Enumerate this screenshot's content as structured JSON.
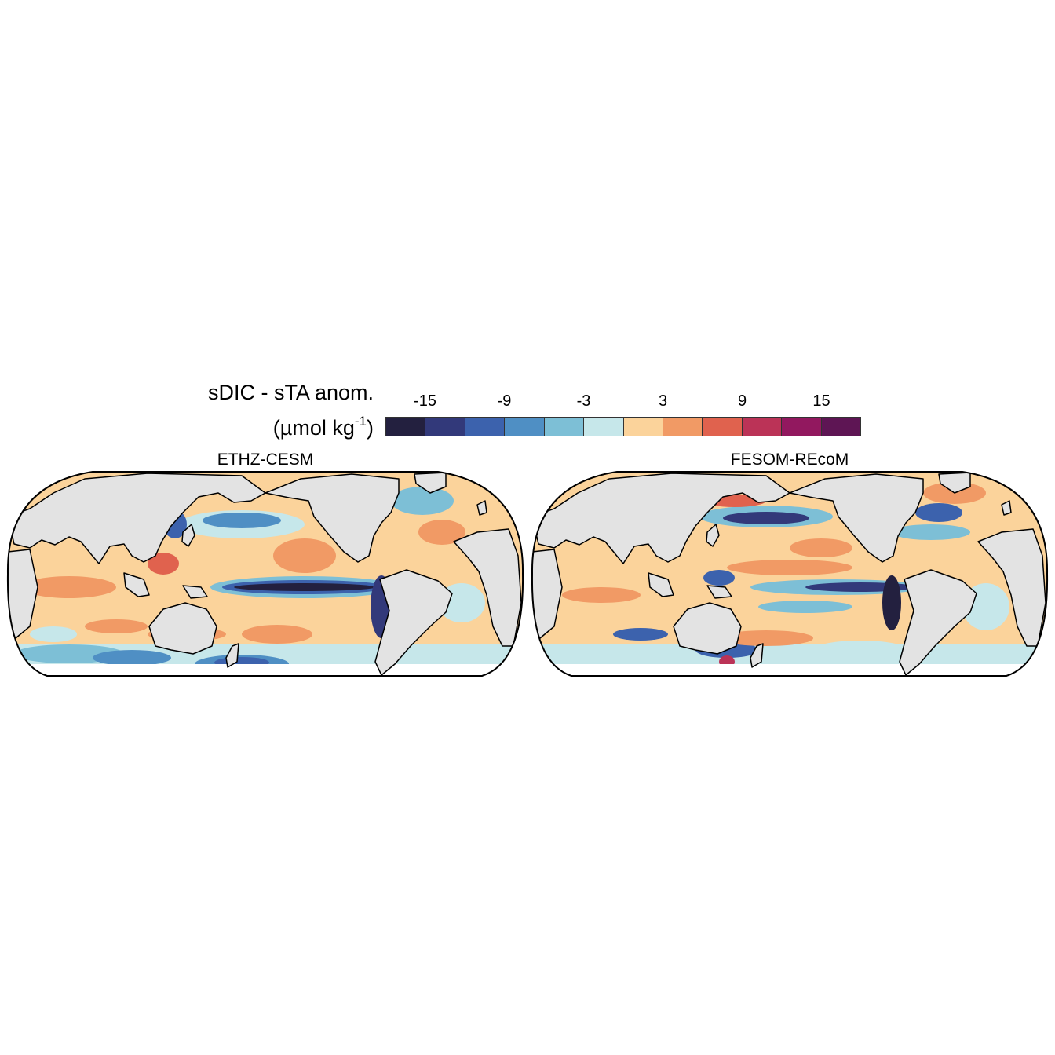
{
  "legend": {
    "title_line1": "sDIC - sTA anom.",
    "title_line2_prefix": "(µmol kg",
    "title_line2_sup": "-1",
    "title_line2_suffix": ")",
    "ticks": [
      "-15",
      "-9",
      "-3",
      "3",
      "9",
      "15"
    ],
    "colors": [
      "#23203f",
      "#32397a",
      "#3c62ad",
      "#4f8fc4",
      "#7dbfd6",
      "#c6e7ea",
      "#fbd39b",
      "#f19a65",
      "#e0624e",
      "#bb3357",
      "#92185f",
      "#5e1554"
    ]
  },
  "panels": [
    {
      "title": "ETHZ-CESM"
    },
    {
      "title": "FESOM-REcoM"
    }
  ],
  "colors": {
    "land": "#e3e3e3",
    "ocean_base": "#fbd39b",
    "outline": "#000000"
  }
}
